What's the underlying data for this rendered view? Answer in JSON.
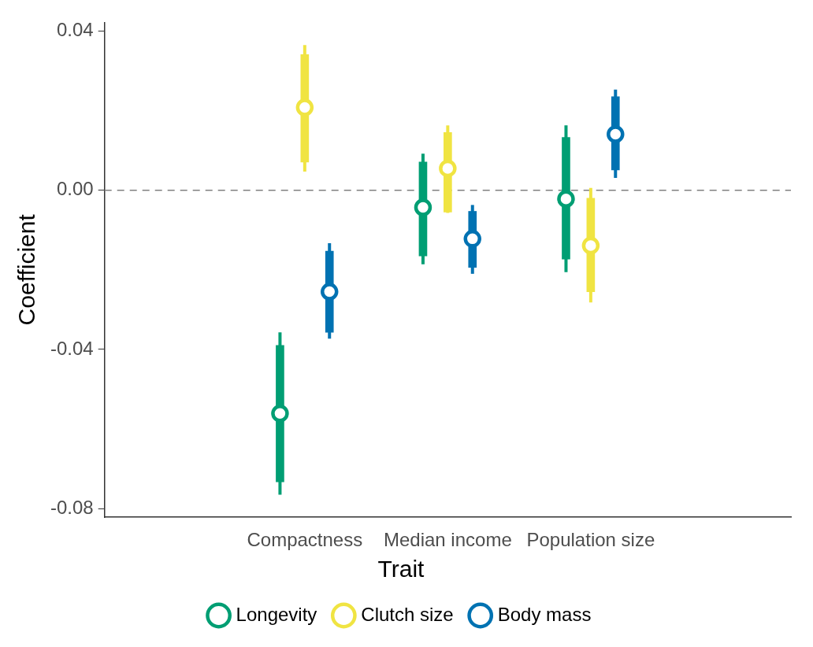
{
  "chart_data": {
    "type": "scatter",
    "ylabel": "Coefficient",
    "legend_title": "Trait",
    "legend": "bottom",
    "grid": false,
    "marker": "circle",
    "categories": [
      "Compactness",
      "Median income",
      "Population size"
    ],
    "ylim": [
      -0.0822,
      0.0422
    ],
    "yticks": [
      {
        "value": -0.08,
        "label": "-0.08"
      },
      {
        "value": -0.04,
        "label": "-0.04"
      },
      {
        "value": 0,
        "label": "0.00"
      },
      {
        "value": 0.04,
        "label": "0.04"
      }
    ],
    "ref_lines": [
      {
        "axis": "y",
        "value": 0,
        "color": "#808080",
        "line_style": "dashed"
      }
    ],
    "series": [
      {
        "name": "Longevity",
        "color": "#009e73",
        "values": [
          -0.0561,
          -0.0043,
          -0.0022
        ],
        "errors": [
          [
            -0.0765,
            -0.0357
          ],
          [
            -0.0186,
            0.0092
          ],
          [
            -0.0206,
            0.0163
          ]
        ]
      },
      {
        "name": "Clutch size",
        "color": "#f0e442",
        "values": [
          0.0208,
          0.0055,
          -0.0139
        ],
        "errors": [
          [
            0.0047,
            0.0365
          ],
          [
            -0.0057,
            0.0163
          ],
          [
            -0.0282,
            0.0006
          ]
        ]
      },
      {
        "name": "Body mass",
        "color": "#0072b2",
        "values": [
          -0.0255,
          -0.0122,
          0.0141
        ],
        "errors": [
          [
            -0.0373,
            -0.0133
          ],
          [
            -0.021,
            -0.0037
          ],
          [
            0.0031,
            0.0253
          ]
        ]
      },
      {
        "type": "bar",
        "color": "#009e73",
        "base": [
          -0.0733,
          -0.0165,
          -0.0173
        ],
        "values": [
          0.0343,
          0.0236,
          0.0306
        ]
      },
      {
        "type": "bar",
        "color": "#f0e442",
        "base": [
          0.0071,
          -0.0055,
          -0.0255
        ],
        "values": [
          0.027,
          0.02,
          0.0235
        ]
      },
      {
        "type": "bar",
        "color": "#0072b2",
        "base": [
          -0.0357,
          -0.0194,
          0.0051
        ],
        "values": [
          0.0204,
          0.0141,
          0.0184
        ]
      }
    ]
  }
}
